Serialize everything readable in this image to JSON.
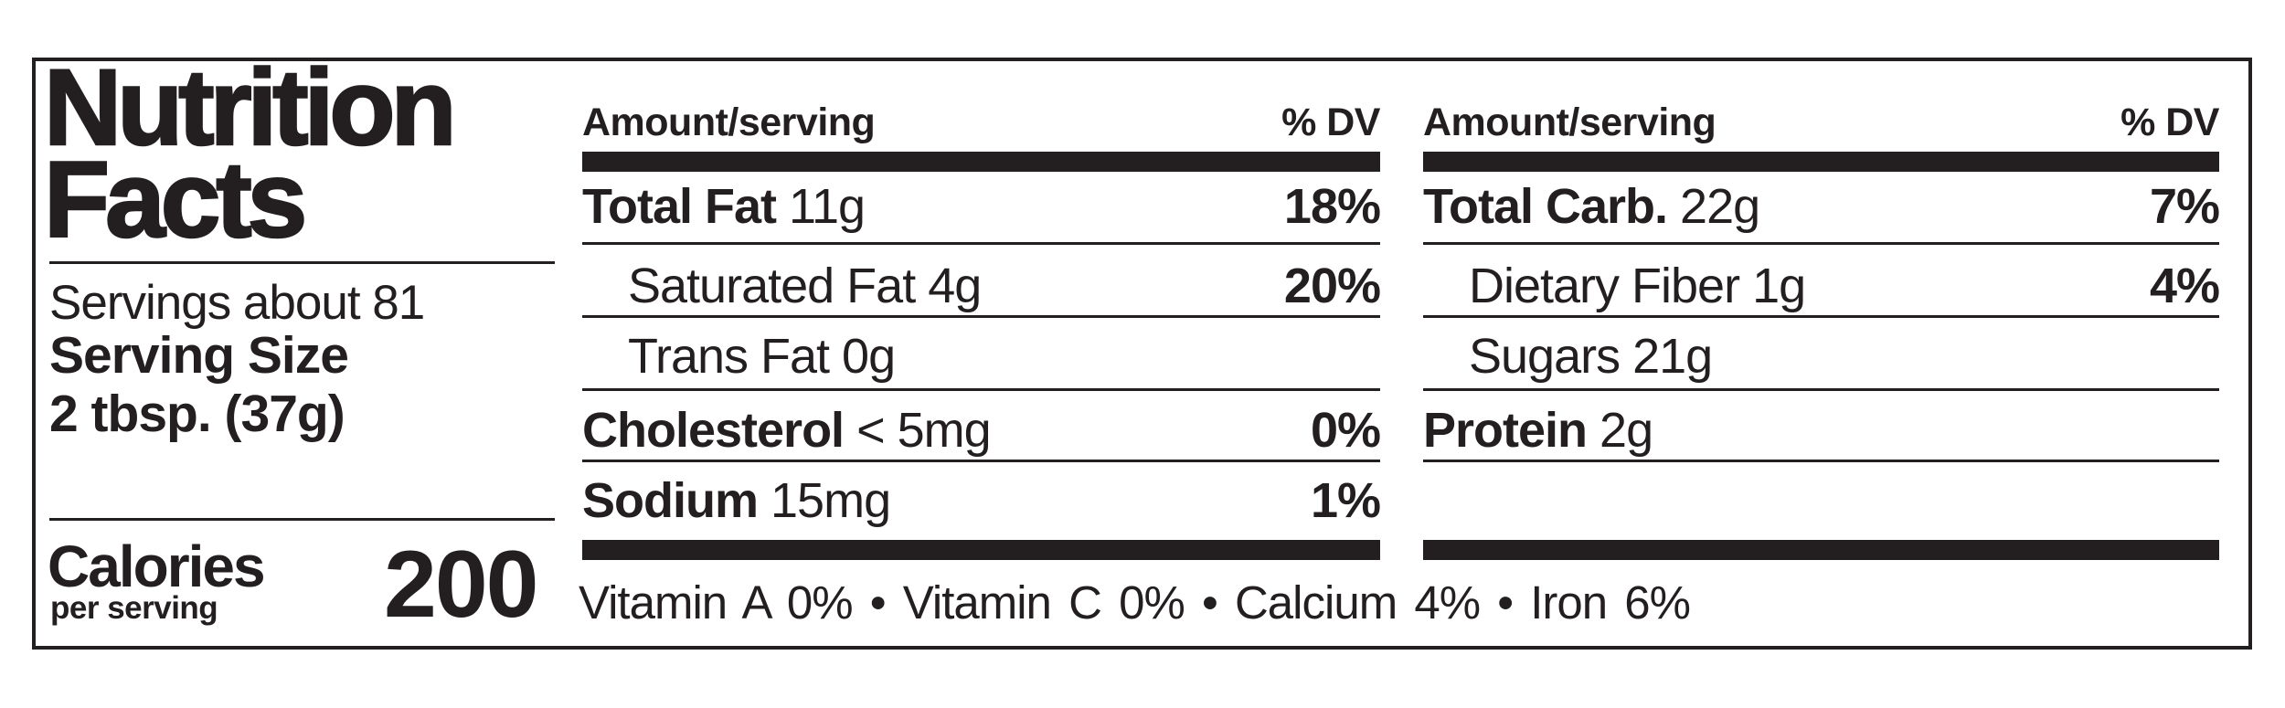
{
  "label": {
    "title_line1": "Nutrition",
    "title_line2": "Facts",
    "servings": "Servings about 81",
    "serving_size_label": "Serving Size",
    "serving_size_value": "2 tbsp. (37g)",
    "calories_label": "Calories",
    "calories_sublabel": "per serving",
    "calories_value": "200",
    "columns": [
      {
        "header": {
          "amount": "Amount/serving",
          "dv": "% DV"
        },
        "rows": [
          {
            "name": "Total Fat",
            "amount": "11g",
            "dv": "18%",
            "indent": false
          },
          {
            "name": "",
            "amount": "Saturated Fat 4g",
            "dv": "20%",
            "indent": true
          },
          {
            "name": "",
            "amount": "Trans Fat 0g",
            "dv": "",
            "indent": true
          },
          {
            "name": "Cholesterol",
            "amount": "< 5mg",
            "dv": "0%",
            "indent": false
          },
          {
            "name": "Sodium",
            "amount": "15mg",
            "dv": "1%",
            "indent": false
          }
        ]
      },
      {
        "header": {
          "amount": "Amount/serving",
          "dv": "% DV"
        },
        "rows": [
          {
            "name": "Total Carb.",
            "amount": "22g",
            "dv": "7%",
            "indent": false
          },
          {
            "name": "",
            "amount": "Dietary Fiber 1g",
            "dv": "4%",
            "indent": true
          },
          {
            "name": "",
            "amount": "Sugars 21g",
            "dv": "",
            "indent": true
          },
          {
            "name": "Protein",
            "amount": "2g",
            "dv": "",
            "indent": false
          }
        ]
      }
    ],
    "vitamins_line": "Vitamin A 0% • Vitamin C 0% • Calcium 4% • Iron 6%",
    "colors": {
      "ink": "#231f20",
      "background": "#ffffff"
    }
  }
}
